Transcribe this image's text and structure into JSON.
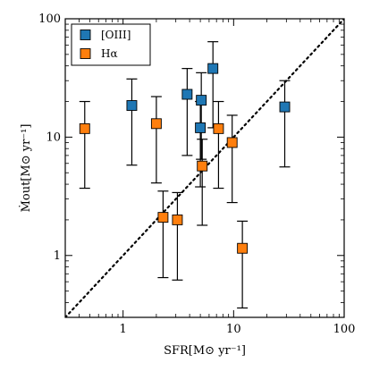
{
  "chart_data": {
    "type": "scatter",
    "xscale": "log",
    "yscale": "log",
    "xlim": [
      0.3,
      100
    ],
    "ylim": [
      0.3,
      100
    ],
    "xlabel": "SFR[M⊙ yr⁻¹]",
    "ylabel": "Ṁout[M⊙ yr⁻¹]",
    "x_ticks": [
      {
        "value": 1,
        "label": "1"
      },
      {
        "value": 10,
        "label": "10"
      },
      {
        "value": 100,
        "label": "100"
      }
    ],
    "y_ticks": [
      {
        "value": 1,
        "label": "1"
      },
      {
        "value": 10,
        "label": "10"
      },
      {
        "value": 100,
        "label": "100"
      }
    ],
    "reference_line": {
      "style": "dotted",
      "relation": "y = x",
      "color": "#000000"
    },
    "legend": {
      "placement": "top-left"
    },
    "series": [
      {
        "name": "[OIII]",
        "color": "#1f77b4",
        "marker": "square",
        "points": [
          {
            "x": 1.2,
            "y": 18.5,
            "ylow": 5.8,
            "yhigh": 31
          },
          {
            "x": 3.8,
            "y": 23,
            "ylow": 7,
            "yhigh": 38
          },
          {
            "x": 5.1,
            "y": 20.5,
            "ylow": 6.5,
            "yhigh": 35
          },
          {
            "x": 5.0,
            "y": 12,
            "ylow": 3.8,
            "yhigh": 20
          },
          {
            "x": 6.5,
            "y": 38,
            "ylow": 12,
            "yhigh": 64
          },
          {
            "x": 29,
            "y": 18,
            "ylow": 5.6,
            "yhigh": 30
          }
        ]
      },
      {
        "name": "Hα",
        "color": "#ff7f0e",
        "marker": "square",
        "points": [
          {
            "x": 0.45,
            "y": 11.8,
            "ylow": 3.7,
            "yhigh": 20
          },
          {
            "x": 2.0,
            "y": 13,
            "ylow": 4.1,
            "yhigh": 22
          },
          {
            "x": 2.3,
            "y": 2.1,
            "ylow": 0.65,
            "yhigh": 3.5
          },
          {
            "x": 3.1,
            "y": 2.0,
            "ylow": 0.62,
            "yhigh": 3.4
          },
          {
            "x": 5.2,
            "y": 5.7,
            "ylow": 1.8,
            "yhigh": 9.6
          },
          {
            "x": 7.3,
            "y": 11.8,
            "ylow": 3.7,
            "yhigh": 20
          },
          {
            "x": 9.7,
            "y": 9.0,
            "ylow": 2.8,
            "yhigh": 15.3
          },
          {
            "x": 12,
            "y": 1.15,
            "ylow": 0.36,
            "yhigh": 1.95
          }
        ]
      }
    ]
  }
}
